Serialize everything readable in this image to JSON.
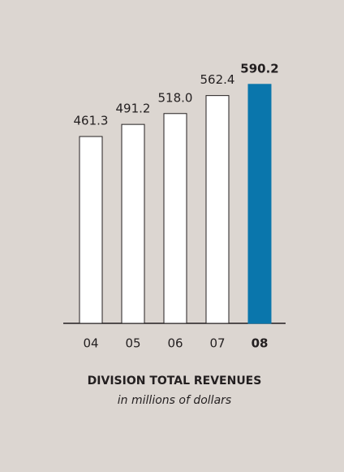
{
  "chart_data": {
    "type": "bar",
    "title": "DIVISION TOTAL REVENUES",
    "subtitle": "in millions of dollars",
    "categories": [
      "04",
      "05",
      "06",
      "07",
      "08"
    ],
    "values": [
      461.3,
      491.2,
      518.0,
      562.4,
      590.2
    ],
    "value_labels": [
      "461.3",
      "491.2",
      "518.0",
      "562.4",
      "590.2"
    ],
    "colors": [
      "#ffffff",
      "#ffffff",
      "#ffffff",
      "#ffffff",
      "#0a76ac"
    ],
    "highlight_index": 4
  }
}
